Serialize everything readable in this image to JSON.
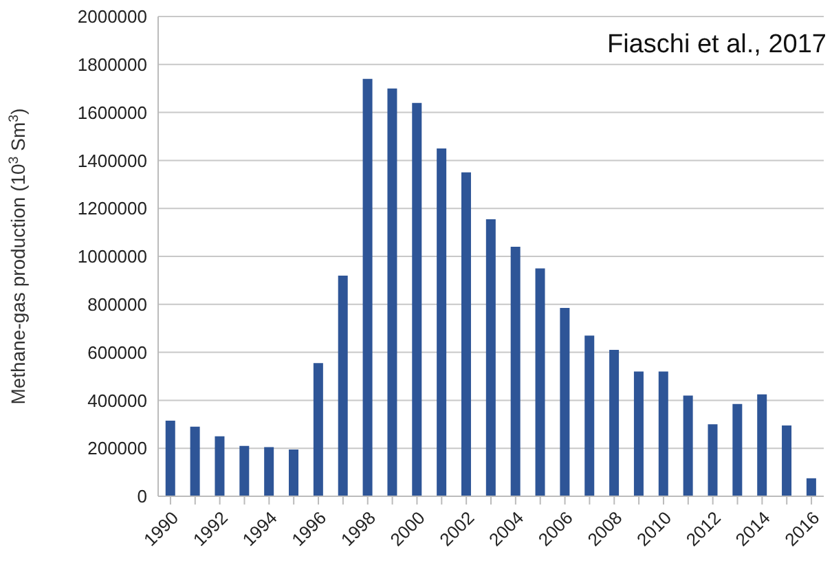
{
  "chart_data": {
    "type": "bar",
    "ylabel": "Methane-gas production (10$^{3}$ Sm$^{3}$)",
    "annotations": [
      "Fiaschi et al., 2017"
    ],
    "categories": [
      "1990",
      null,
      "1992",
      null,
      "1994",
      null,
      "1996",
      null,
      "1998",
      null,
      "2000",
      null,
      "2002",
      null,
      "2004",
      null,
      "2006",
      null,
      "2008",
      null,
      "2010",
      null,
      "2012",
      null,
      "2014",
      null,
      "2016"
    ],
    "values": [
      315000,
      290000,
      250000,
      210000,
      205000,
      195000,
      555000,
      920000,
      1740000,
      1700000,
      1640000,
      1450000,
      1350000,
      1155000,
      1040000,
      950000,
      785000,
      670000,
      610000,
      520000,
      520000,
      420000,
      300000,
      385000,
      425000,
      295000,
      75000
    ],
    "color": "#2e5597",
    "ylim": [
      0,
      2000000
    ],
    "yticks": [
      0,
      200000,
      400000,
      600000,
      800000,
      1000000,
      1200000,
      1400000,
      1600000,
      1800000,
      2000000
    ],
    "grid": "y"
  }
}
